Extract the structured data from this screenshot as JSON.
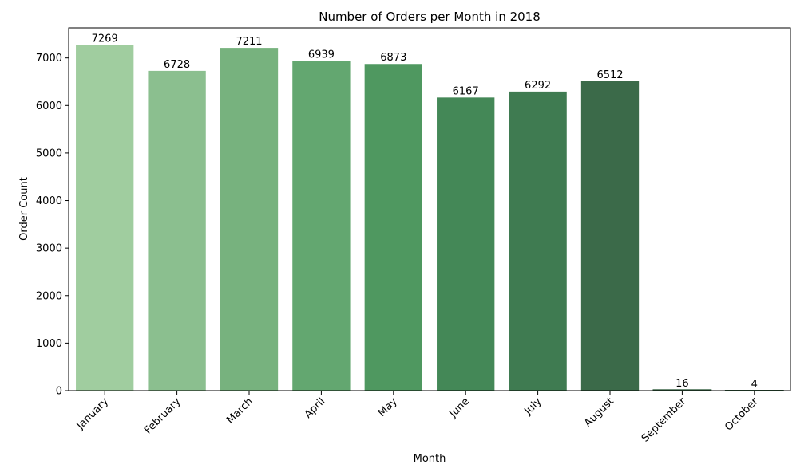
{
  "chart_data": {
    "type": "bar",
    "title": "Number of Orders per Month in 2018",
    "xlabel": "Month",
    "ylabel": "Order Count",
    "categories": [
      "January",
      "February",
      "March",
      "April",
      "May",
      "June",
      "July",
      "August",
      "September",
      "October"
    ],
    "values": [
      7269,
      6728,
      7211,
      6939,
      6873,
      6167,
      6292,
      6512,
      16,
      4
    ],
    "ylim": [
      0,
      7632
    ],
    "yticks": [
      0,
      1000,
      2000,
      3000,
      4000,
      5000,
      6000,
      7000
    ],
    "grid": false,
    "legend": "none",
    "colors": [
      "#a0cd9f",
      "#8bbf8f",
      "#77b27e",
      "#63a770",
      "#4f9860",
      "#448857",
      "#3f7b51",
      "#3b6a49",
      "#336040",
      "#2f5a3b"
    ]
  }
}
